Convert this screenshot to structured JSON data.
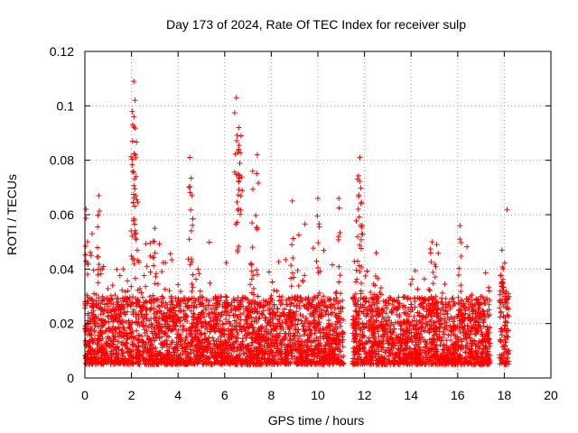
{
  "chart_data": {
    "type": "scatter",
    "title": "Day 173 of 2024, Rate Of TEC Index for receiver sulp",
    "xlabel": "GPS time / hours",
    "ylabel": "ROTI / TECUs",
    "xlim": [
      0,
      20
    ],
    "ylim": [
      0,
      0.12
    ],
    "xticks": [
      0,
      2,
      4,
      6,
      8,
      10,
      12,
      14,
      16,
      18,
      20
    ],
    "xtick_labels": [
      "0",
      "2",
      "4",
      "6",
      "8",
      "10",
      "12",
      "14",
      "16",
      "18",
      "20"
    ],
    "yticks": [
      0,
      0.02,
      0.04,
      0.06,
      0.08,
      0.1,
      0.12
    ],
    "ytick_labels": [
      "0",
      "0.02",
      "0.04",
      "0.06",
      "0.08",
      "0.1",
      "0.12"
    ],
    "grid": true,
    "marker": "+",
    "color": "#ff0000",
    "series": [
      {
        "name": "ROTI",
        "segments": [
          {
            "x_start": 0.0,
            "x_end": 11.1,
            "typical_min": 0.005,
            "typical_max": 0.03
          },
          {
            "x_start": 11.5,
            "x_end": 17.4,
            "typical_min": 0.005,
            "typical_max": 0.03
          },
          {
            "x_start": 17.8,
            "x_end": 18.2,
            "typical_min": 0.005,
            "typical_max": 0.035
          }
        ],
        "peaks": [
          {
            "x": 0.05,
            "y": 0.062
          },
          {
            "x": 0.6,
            "y": 0.067
          },
          {
            "x": 2.1,
            "y": 0.109
          },
          {
            "x": 2.15,
            "y": 0.102
          },
          {
            "x": 2.1,
            "y": 0.096
          },
          {
            "x": 2.05,
            "y": 0.087
          },
          {
            "x": 2.2,
            "y": 0.074
          },
          {
            "x": 3.0,
            "y": 0.055
          },
          {
            "x": 4.5,
            "y": 0.081
          },
          {
            "x": 4.6,
            "y": 0.067
          },
          {
            "x": 6.5,
            "y": 0.103
          },
          {
            "x": 6.6,
            "y": 0.092
          },
          {
            "x": 6.7,
            "y": 0.089
          },
          {
            "x": 6.6,
            "y": 0.084
          },
          {
            "x": 7.4,
            "y": 0.082
          },
          {
            "x": 7.2,
            "y": 0.076
          },
          {
            "x": 8.9,
            "y": 0.065
          },
          {
            "x": 10.0,
            "y": 0.066
          },
          {
            "x": 10.9,
            "y": 0.066
          },
          {
            "x": 11.8,
            "y": 0.081
          },
          {
            "x": 11.7,
            "y": 0.073
          },
          {
            "x": 11.85,
            "y": 0.064
          },
          {
            "x": 12.5,
            "y": 0.046
          },
          {
            "x": 14.9,
            "y": 0.05
          },
          {
            "x": 15.1,
            "y": 0.049
          },
          {
            "x": 16.1,
            "y": 0.056
          },
          {
            "x": 17.9,
            "y": 0.047
          }
        ]
      }
    ]
  }
}
